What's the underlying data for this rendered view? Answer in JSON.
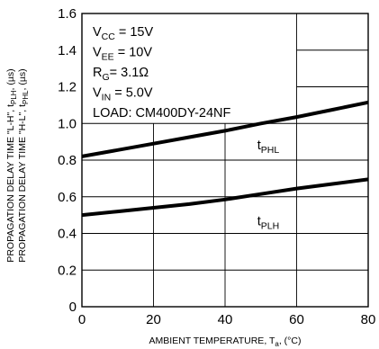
{
  "chart_data": {
    "type": "line",
    "xlabel": "AMBIENT TEMPERATURE, T",
    "xlabel_sub": "a",
    "xlabel_unit": ", (°C)",
    "ylabel_lines": [
      {
        "text": "PROPAGATION DELAY TIME \"L-H\", t",
        "sub": "PLH",
        "unit": ", (µs)"
      },
      {
        "text": "PROPAGATION DELAY TIME \"H-L\", t",
        "sub": "PHL",
        "unit": ", (µs)"
      }
    ],
    "xlim": [
      0,
      80
    ],
    "ylim": [
      0,
      1.6
    ],
    "x_ticks": [
      0,
      20,
      40,
      60,
      80
    ],
    "y_ticks": [
      0,
      0.2,
      0.4,
      0.6,
      0.8,
      1.0,
      1.2,
      1.4,
      1.6
    ],
    "x_tick_labels": [
      "0",
      "20",
      "40",
      "60",
      "80"
    ],
    "y_tick_labels": [
      "0",
      "0.2",
      "0.4",
      "0.6",
      "0.8",
      "1.0",
      "1.2",
      "1.4",
      "1.6"
    ],
    "grid": true,
    "conditions": [
      {
        "main": "V",
        "sub": "CC",
        "rest": " = 15V"
      },
      {
        "main": "V",
        "sub": "EE",
        "rest": " = 10V"
      },
      {
        "main": "R",
        "sub": "G",
        "rest": "= 3.1Ω"
      },
      {
        "main": "V",
        "sub": "IN",
        "rest": " = 5.0V"
      },
      {
        "main": "LOAD: CM400DY-24NF",
        "sub": "",
        "rest": ""
      }
    ],
    "series": [
      {
        "name": "t",
        "name_sub": "PHL",
        "label_at": [
          49,
          0.86
        ],
        "x": [
          0,
          10,
          20,
          30,
          40,
          50,
          60,
          70,
          80
        ],
        "y": [
          0.82,
          0.855,
          0.89,
          0.925,
          0.96,
          1.0,
          1.035,
          1.075,
          1.115
        ]
      },
      {
        "name": "t",
        "name_sub": "PLH",
        "label_at": [
          49,
          0.445
        ],
        "x": [
          0,
          10,
          20,
          30,
          40,
          50,
          60,
          70,
          80
        ],
        "y": [
          0.5,
          0.52,
          0.54,
          0.56,
          0.585,
          0.615,
          0.645,
          0.67,
          0.695
        ]
      }
    ]
  }
}
